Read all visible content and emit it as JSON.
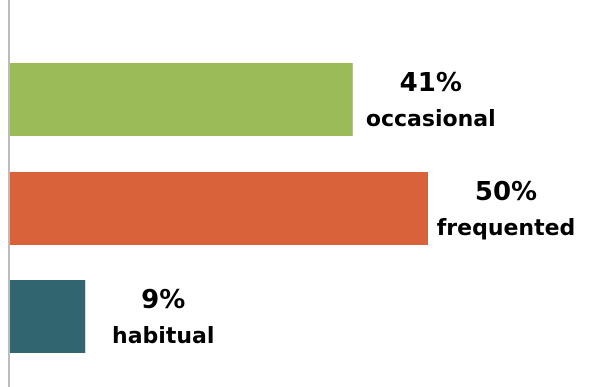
{
  "chart_data": {
    "type": "bar",
    "orientation": "horizontal",
    "categories": [
      "occasional",
      "frequented",
      "habitual"
    ],
    "values": [
      41,
      50,
      9
    ],
    "value_labels": [
      "41%",
      "50%",
      "9%"
    ],
    "colors": [
      "#9bbb59",
      "#d9623b",
      "#31656f"
    ],
    "xlim": [
      0,
      50
    ],
    "grid": false,
    "legend": "none"
  }
}
